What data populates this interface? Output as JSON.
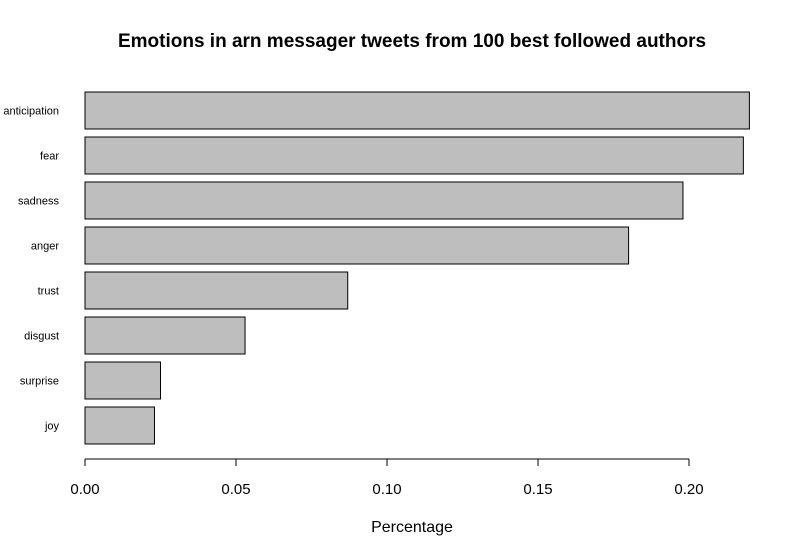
{
  "chart_data": {
    "type": "bar",
    "orientation": "horizontal",
    "title": "Emotions in arn messager tweets from 100 best followed authors",
    "xlabel": "Percentage",
    "ylabel": "",
    "categories": [
      "anticipation",
      "fear",
      "sadness",
      "anger",
      "trust",
      "disgust",
      "surprise",
      "joy"
    ],
    "values": [
      0.22,
      0.218,
      0.198,
      0.18,
      0.087,
      0.053,
      0.025,
      0.023
    ],
    "xlim": [
      0,
      0.22
    ],
    "xticks": [
      0.0,
      0.05,
      0.1,
      0.15,
      0.2
    ],
    "xtick_labels": [
      "0.00",
      "0.05",
      "0.10",
      "0.15",
      "0.20"
    ],
    "bar_color": "#bebebe",
    "grid": false,
    "legend": "none"
  }
}
